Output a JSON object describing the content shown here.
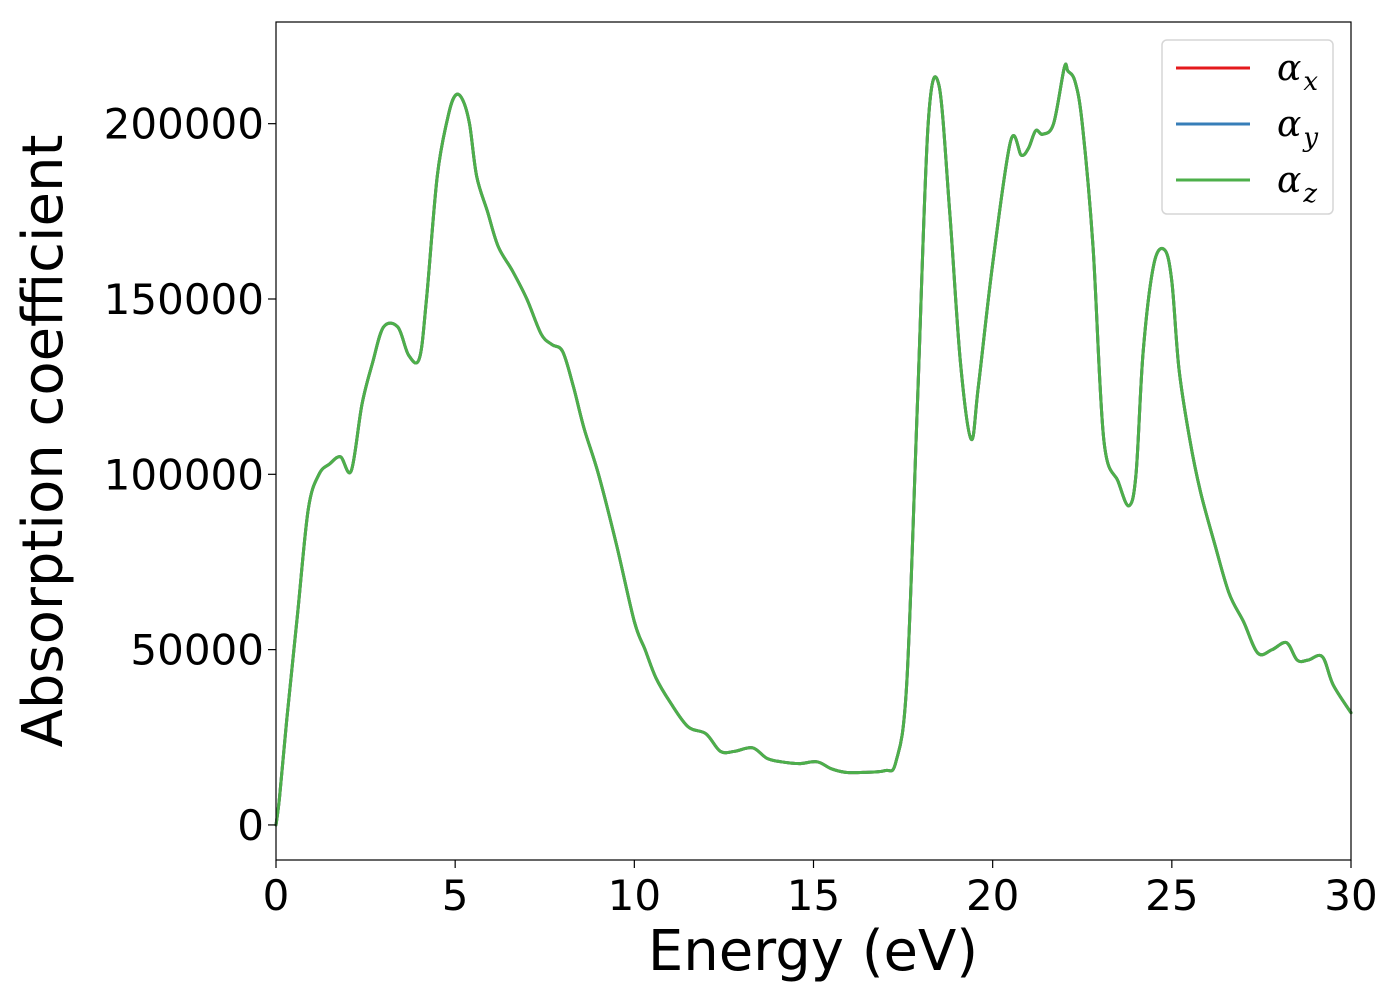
{
  "chart_data": {
    "type": "line",
    "xlabel": "Energy (eV)",
    "ylabel": "Absorption coefficient",
    "xlim": [
      0,
      30
    ],
    "ylim": [
      -10000,
      229000
    ],
    "xticks": [
      0,
      5,
      10,
      15,
      20,
      25,
      30
    ],
    "xtick_labels": [
      "0",
      "5",
      "10",
      "15",
      "20",
      "25",
      "30"
    ],
    "yticks": [
      0,
      50000,
      100000,
      150000,
      200000
    ],
    "ytick_labels": [
      "0",
      "50000",
      "100000",
      "150000",
      "200000"
    ],
    "grid": false,
    "legend_position": "top-right",
    "x": [
      0,
      0.1,
      0.3,
      0.6,
      0.9,
      1.2,
      1.5,
      1.8,
      2.1,
      2.4,
      2.7,
      3.0,
      3.4,
      3.7,
      4.0,
      4.2,
      4.5,
      4.8,
      5.0,
      5.2,
      5.4,
      5.6,
      5.9,
      6.2,
      6.6,
      7.0,
      7.4,
      7.7,
      8.0,
      8.3,
      8.6,
      9.0,
      9.5,
      10.0,
      10.3,
      10.6,
      11.0,
      11.5,
      12.0,
      12.4,
      12.8,
      13.3,
      13.7,
      14.1,
      14.6,
      15.1,
      15.5,
      15.9,
      16.4,
      17.0,
      17.3,
      17.6,
      17.9,
      18.2,
      18.5,
      18.8,
      19.1,
      19.4,
      19.6,
      20.0,
      20.5,
      20.8,
      21.0,
      21.2,
      21.4,
      21.7,
      22.0,
      22.1,
      22.3,
      22.5,
      22.8,
      23.1,
      23.5,
      23.8,
      24.0,
      24.2,
      24.5,
      24.8,
      25.0,
      25.2,
      25.5,
      25.8,
      26.2,
      26.6,
      27.0,
      27.4,
      27.8,
      28.2,
      28.5,
      28.8,
      29.2,
      29.5,
      30.0
    ],
    "series": [
      {
        "name": "α_x",
        "color": "#e41a1c",
        "values": [
          0,
          8000,
          30000,
          60000,
          90000,
          100000,
          103000,
          105000,
          101000,
          120000,
          132000,
          142000,
          142000,
          134000,
          133000,
          150000,
          185000,
          202000,
          208000,
          207000,
          200000,
          185000,
          175000,
          165000,
          158000,
          150000,
          140000,
          137000,
          135000,
          125000,
          113000,
          100000,
          80000,
          58000,
          50000,
          42000,
          35000,
          28000,
          26000,
          21000,
          21000,
          22000,
          19000,
          18000,
          17500,
          18000,
          16000,
          15000,
          15000,
          15500,
          18000,
          40000,
          120000,
          200000,
          211000,
          175000,
          132000,
          110000,
          125000,
          160000,
          195000,
          191000,
          193000,
          198000,
          197000,
          200000,
          216000,
          215000,
          212000,
          200000,
          165000,
          110000,
          98000,
          91000,
          100000,
          135000,
          160000,
          164000,
          155000,
          130000,
          110000,
          95000,
          80000,
          66000,
          58000,
          49000,
          50000,
          52000,
          47000,
          47000,
          48000,
          40000,
          32000
        ]
      },
      {
        "name": "α_y",
        "color": "#377eb8",
        "values": [
          0,
          8000,
          30000,
          60000,
          90000,
          100000,
          103000,
          105000,
          101000,
          120000,
          132000,
          142000,
          142000,
          134000,
          133000,
          150000,
          185000,
          202000,
          208000,
          207000,
          200000,
          185000,
          175000,
          165000,
          158000,
          150000,
          140000,
          137000,
          135000,
          125000,
          113000,
          100000,
          80000,
          58000,
          50000,
          42000,
          35000,
          28000,
          26000,
          21000,
          21000,
          22000,
          19000,
          18000,
          17500,
          18000,
          16000,
          15000,
          15000,
          15500,
          18000,
          40000,
          120000,
          200000,
          211000,
          175000,
          132000,
          110000,
          125000,
          160000,
          195000,
          191000,
          193000,
          198000,
          197000,
          200000,
          216000,
          215000,
          212000,
          200000,
          165000,
          110000,
          98000,
          91000,
          100000,
          135000,
          160000,
          164000,
          155000,
          130000,
          110000,
          95000,
          80000,
          66000,
          58000,
          49000,
          50000,
          52000,
          47000,
          47000,
          48000,
          40000,
          32000
        ]
      },
      {
        "name": "α_z",
        "color": "#4daf4a",
        "values": [
          0,
          8000,
          30000,
          60000,
          90000,
          100000,
          103000,
          105000,
          101000,
          120000,
          132000,
          142000,
          142000,
          134000,
          133000,
          150000,
          185000,
          202000,
          208000,
          207000,
          200000,
          185000,
          175000,
          165000,
          158000,
          150000,
          140000,
          137000,
          135000,
          125000,
          113000,
          100000,
          80000,
          58000,
          50000,
          42000,
          35000,
          28000,
          26000,
          21000,
          21000,
          22000,
          19000,
          18000,
          17500,
          18000,
          16000,
          15000,
          15000,
          15500,
          18000,
          40000,
          120000,
          200000,
          211000,
          175000,
          132000,
          110000,
          125000,
          160000,
          195000,
          191000,
          193000,
          198000,
          197000,
          200000,
          216000,
          215000,
          212000,
          200000,
          165000,
          110000,
          98000,
          91000,
          100000,
          135000,
          160000,
          164000,
          155000,
          130000,
          110000,
          95000,
          80000,
          66000,
          58000,
          49000,
          50000,
          52000,
          47000,
          47000,
          48000,
          40000,
          32000
        ]
      }
    ],
    "legend": [
      {
        "symbol": "α",
        "sub": "x",
        "color": "#e41a1c"
      },
      {
        "symbol": "α",
        "sub": "y",
        "color": "#377eb8"
      },
      {
        "symbol": "α",
        "sub": "z",
        "color": "#4daf4a"
      }
    ]
  }
}
